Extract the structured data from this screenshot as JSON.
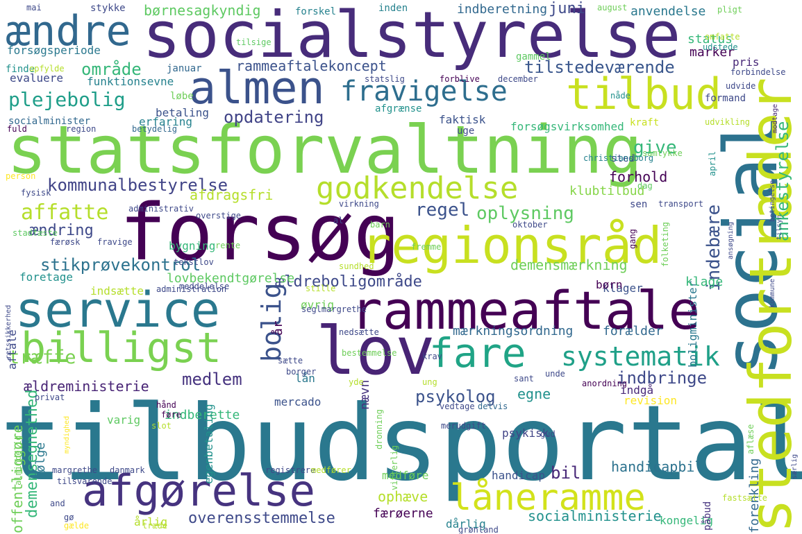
{
  "palette": [
    "#440154",
    "#482878",
    "#3e4989",
    "#31688e",
    "#26828e",
    "#1f9e89",
    "#35b779",
    "#6ece58",
    "#b5de2b",
    "#fde725"
  ],
  "words": [
    {
      "text": "tilbudsportal",
      "color": "#2a788e"
    },
    {
      "text": "socialstyrelse",
      "color": "#472c7a"
    },
    {
      "text": "statsforvaltning",
      "color": "#7ad151"
    },
    {
      "text": "forsøg",
      "color": "#440154"
    },
    {
      "text": "regionsråd",
      "color": "#c8e020"
    },
    {
      "text": "rammeaftale",
      "color": "#440154"
    },
    {
      "text": "service",
      "color": "#2a788e"
    },
    {
      "text": "lov",
      "color": "#482475"
    },
    {
      "text": "social",
      "color": "#2c728e"
    },
    {
      "text": "stedfortræder",
      "color": "#c8e020"
    },
    {
      "text": "almen",
      "color": "#3b528b"
    },
    {
      "text": "tilbud",
      "color": "#c8e020"
    },
    {
      "text": "ændre",
      "color": "#31688e"
    },
    {
      "text": "billigst",
      "color": "#7ad151"
    },
    {
      "text": "afgørelse",
      "color": "#46337f"
    },
    {
      "text": "fare",
      "color": "#20a486"
    },
    {
      "text": "låneramme",
      "color": "#d2e21b"
    },
    {
      "text": "godkendelse",
      "color": "#b5de2b"
    },
    {
      "text": "fravigelse",
      "color": "#2e6e8e"
    },
    {
      "text": "systematik",
      "color": "#1fa088"
    },
    {
      "text": "bolig",
      "color": "#3b528b"
    },
    {
      "text": "kommunalbestyrelse",
      "color": "#414487"
    },
    {
      "text": "plejebolig",
      "color": "#1f9e89"
    },
    {
      "text": "område",
      "color": "#35b779"
    },
    {
      "text": "tilstedeværende",
      "color": "#39568c"
    },
    {
      "text": "opdatering",
      "color": "#414487"
    },
    {
      "text": "rammeaftalekoncept",
      "color": "#3b528b"
    },
    {
      "text": "stikprøvekontrol",
      "color": "#2c728e"
    },
    {
      "text": "affatte",
      "color": "#b5de2b"
    },
    {
      "text": "ændring",
      "color": "#3e4989"
    },
    {
      "text": "træffe",
      "color": "#7ad151"
    },
    {
      "text": "regel",
      "color": "#3b528b"
    },
    {
      "text": "oplysning",
      "color": "#5ec962"
    },
    {
      "text": "indbringe",
      "color": "#3e4989"
    },
    {
      "text": "psykolog",
      "color": "#3b528b"
    },
    {
      "text": "medlem",
      "color": "#46337f"
    },
    {
      "text": "overensstemmelse",
      "color": "#3e4989"
    },
    {
      "text": "ankestyrelse",
      "color": "#35b779"
    },
    {
      "text": "demensmærkning",
      "color": "#6ece58"
    },
    {
      "text": "forhold",
      "color": "#440154"
    },
    {
      "text": "give",
      "color": "#35b779"
    },
    {
      "text": "indebære",
      "color": "#3b528b"
    },
    {
      "text": "handicapbil",
      "color": "#2c728e"
    },
    {
      "text": "bil",
      "color": "#482878"
    },
    {
      "text": "ophæve",
      "color": "#b5de2b"
    },
    {
      "text": "socialministerie",
      "color": "#21918c"
    },
    {
      "text": "ældreboligområde",
      "color": "#3e4989"
    },
    {
      "text": "mærkningsordning",
      "color": "#31688e"
    },
    {
      "text": "forælder",
      "color": "#31688e"
    },
    {
      "text": "ældreministerie",
      "color": "#482475"
    },
    {
      "text": "demensegnethed",
      "color": "#35b779"
    },
    {
      "text": "offentliggøre",
      "color": "#6ece58"
    },
    {
      "text": "følge",
      "color": "#2a788e"
    },
    {
      "text": "afdragsfri",
      "color": "#b5de2b"
    },
    {
      "text": "lovbekendtgørelse",
      "color": "#5ec962"
    },
    {
      "text": "indsætte",
      "color": "#b5de2b"
    },
    {
      "text": "foretage",
      "color": "#21918c"
    },
    {
      "text": "bygning",
      "color": "#35b779"
    },
    {
      "text": "klubtilbud",
      "color": "#86d549"
    },
    {
      "text": "børnesagkyndig",
      "color": "#5ec962"
    },
    {
      "text": "indberetning",
      "color": "#31688e"
    },
    {
      "text": "anvendelse",
      "color": "#2a788e"
    },
    {
      "text": "forsøgsperiode",
      "color": "#2a788e"
    },
    {
      "text": "funktionsevne",
      "color": "#26828e"
    },
    {
      "text": "evaluere",
      "color": "#3e4989"
    },
    {
      "text": "forsøgsvirksomhed",
      "color": "#35b779"
    },
    {
      "text": "afgrænse",
      "color": "#21918c"
    },
    {
      "text": "socialminister",
      "color": "#31688e"
    },
    {
      "text": "erfaring",
      "color": "#26828e"
    },
    {
      "text": "betaling",
      "color": "#3b528b"
    },
    {
      "text": "faktisk",
      "color": "#3b528b"
    },
    {
      "text": "kraft",
      "color": "#c8e020"
    },
    {
      "text": "status",
      "color": "#35b779"
    },
    {
      "text": "marker",
      "color": "#440154"
    },
    {
      "text": "pris",
      "color": "#482878"
    },
    {
      "text": "juni",
      "color": "#3e4989"
    },
    {
      "text": "år",
      "color": "#440154"
    },
    {
      "text": "egne",
      "color": "#21918c"
    },
    {
      "text": "nævn",
      "color": "#46337f"
    },
    {
      "text": "lån",
      "color": "#2a788e"
    },
    {
      "text": "mercado",
      "color": "#3b528b"
    },
    {
      "text": "indberette",
      "color": "#35b779"
    },
    {
      "text": "varig",
      "color": "#5ec962"
    },
    {
      "text": "indgå",
      "color": "#482878"
    },
    {
      "text": "revision",
      "color": "#fde725"
    },
    {
      "text": "handicap",
      "color": "#3b528b"
    },
    {
      "text": "medføre",
      "color": "#6ece58"
    },
    {
      "text": "færøerne",
      "color": "#440154"
    },
    {
      "text": "dårlig",
      "color": "#26828e"
    },
    {
      "text": "kongelig",
      "color": "#35b779"
    },
    {
      "text": "forenkling",
      "color": "#31688e"
    },
    {
      "text": "årlig",
      "color": "#b5de2b"
    },
    {
      "text": "påbud",
      "color": "#46337f"
    },
    {
      "text": "boligminister",
      "color": "#2a788e"
    },
    {
      "text": "klager",
      "color": "#3b528b"
    },
    {
      "text": "klage",
      "color": "#35b779"
    },
    {
      "text": "børn",
      "color": "#440154"
    },
    {
      "text": "aftale",
      "color": "#3e4989"
    },
    {
      "text": "egenbetaling",
      "color": "#21918c"
    },
    {
      "text": "psykisk",
      "color": "#414487"
    },
    {
      "text": "øvrig",
      "color": "#6ece58"
    },
    {
      "text": "januar",
      "color": "#31688e"
    },
    {
      "text": "gammel",
      "color": "#5ec962"
    },
    {
      "text": "løbe",
      "color": "#6ece58"
    },
    {
      "text": "uge",
      "color": "#3e4989"
    },
    {
      "text": "formand",
      "color": "#3e4989"
    },
    {
      "text": "sted",
      "color": "#3e4989"
    },
    {
      "text": "sen",
      "color": "#3e4989"
    },
    {
      "text": "finde",
      "color": "#21918c"
    },
    {
      "text": "mai",
      "color": "#3e4989"
    },
    {
      "text": "stykke",
      "color": "#3e4989"
    },
    {
      "text": "forskel",
      "color": "#26828e"
    },
    {
      "text": "inden",
      "color": "#26828e"
    },
    {
      "text": "august",
      "color": "#6ece58"
    },
    {
      "text": "pligt",
      "color": "#6ece58"
    },
    {
      "text": "tilsige",
      "color": "#5ec962"
    },
    {
      "text": "omfatte",
      "color": "#b5de2b"
    },
    {
      "text": "udstede",
      "color": "#21918c"
    },
    {
      "text": "opfylde",
      "color": "#b5de2b"
    },
    {
      "text": "statslig",
      "color": "#3e4989"
    },
    {
      "text": "forblive",
      "color": "#440154"
    },
    {
      "text": "december",
      "color": "#3e4989"
    },
    {
      "text": "forbindelse",
      "color": "#3e4989"
    },
    {
      "text": "udvide",
      "color": "#3e4989"
    },
    {
      "text": "nåde",
      "color": "#21918c"
    },
    {
      "text": "fuld",
      "color": "#440154"
    },
    {
      "text": "region",
      "color": "#3e4989"
    },
    {
      "text": "betydelig",
      "color": "#31688e"
    },
    {
      "text": "udvikling",
      "color": "#b5de2b"
    },
    {
      "text": "modtage",
      "color": "#482878"
    },
    {
      "text": "samtykke",
      "color": "#6ece58"
    },
    {
      "text": "christiansborg",
      "color": "#26828e"
    },
    {
      "text": "april",
      "color": "#21918c"
    },
    {
      "text": "dag",
      "color": "#5ec962"
    },
    {
      "text": "person",
      "color": "#fde725"
    },
    {
      "text": "fysisk",
      "color": "#3e4989"
    },
    {
      "text": "administrativ",
      "color": "#3e4989"
    },
    {
      "text": "virkning",
      "color": "#3e4989"
    },
    {
      "text": "transport",
      "color": "#3e4989"
    },
    {
      "text": "overstige",
      "color": "#3e4989"
    },
    {
      "text": "al",
      "color": "#3e4989"
    },
    {
      "text": "barn",
      "color": "#6ece58"
    },
    {
      "text": "oktober",
      "color": "#3e4989"
    },
    {
      "text": "ansøgning",
      "color": "#3e4989"
    },
    {
      "text": "tilsyn",
      "color": "#3b528b"
    },
    {
      "text": "betingelse",
      "color": "#3e4989"
    },
    {
      "text": "stadfæste",
      "color": "#5ec962"
    },
    {
      "text": "færøsk",
      "color": "#3e4989"
    },
    {
      "text": "fravige",
      "color": "#3e4989"
    },
    {
      "text": "rente",
      "color": "#6ece58"
    },
    {
      "text": "gang",
      "color": "#440154"
    },
    {
      "text": "folketing",
      "color": "#6ece58"
    },
    {
      "text": "tekstlov",
      "color": "#3e4989"
    },
    {
      "text": "sundhed",
      "color": "#b5de2b"
    },
    {
      "text": "fremme",
      "color": "#6ece58"
    },
    {
      "text": "meddelelse",
      "color": "#3e4989"
    },
    {
      "text": "administration",
      "color": "#3e4989"
    },
    {
      "text": "stille",
      "color": "#b5de2b"
    },
    {
      "text": "kommune",
      "color": "#3e4989"
    },
    {
      "text": "seglmargrethe",
      "color": "#3e4989"
    },
    {
      "text": "nedsætte",
      "color": "#3e4989"
    },
    {
      "text": "retssikkerhed",
      "color": "#3e4989"
    },
    {
      "text": "bestemmelse",
      "color": "#6ece58"
    },
    {
      "text": "sætte",
      "color": "#3e4989"
    },
    {
      "text": "borger",
      "color": "#3e4989"
    },
    {
      "text": "krav",
      "color": "#3e4989"
    },
    {
      "text": "sant",
      "color": "#3e4989"
    },
    {
      "text": "unde",
      "color": "#3e4989"
    },
    {
      "text": "yde",
      "color": "#b5de2b"
    },
    {
      "text": "ung",
      "color": "#b5de2b"
    },
    {
      "text": "anordning",
      "color": "#440154"
    },
    {
      "text": "privat",
      "color": "#3e4989"
    },
    {
      "text": "hånd",
      "color": "#440154"
    },
    {
      "text": "føre",
      "color": "#440154"
    },
    {
      "text": "slot",
      "color": "#b5de2b"
    },
    {
      "text": "vedtage",
      "color": "#3e4989"
    },
    {
      "text": "delvis",
      "color": "#31688e"
    },
    {
      "text": "merudgift",
      "color": "#3e4989"
    },
    {
      "text": "gud",
      "color": "#3e4989"
    },
    {
      "text": "dronning",
      "color": "#6ece58"
    },
    {
      "text": "vitterlig",
      "color": "#6ece58"
    },
    {
      "text": "aflæse",
      "color": "#6ece58"
    },
    {
      "text": "særlig",
      "color": "#3e4989"
    },
    {
      "text": "myndighed",
      "color": "#fde725"
    },
    {
      "text": "almindelig",
      "color": "#6ece58"
    },
    {
      "text": "margrethe",
      "color": "#3e4989"
    },
    {
      "text": "danmark",
      "color": "#3e4989"
    },
    {
      "text": "registrere",
      "color": "#3e4989"
    },
    {
      "text": "medfører",
      "color": "#b5de2b"
    },
    {
      "text": "tilsvarende",
      "color": "#3e4989"
    },
    {
      "text": "and",
      "color": "#3e4989"
    },
    {
      "text": "gø",
      "color": "#3e4989"
    },
    {
      "text": "gælde",
      "color": "#fde725"
    },
    {
      "text": "træde",
      "color": "#b5de2b"
    },
    {
      "text": "grønland",
      "color": "#3e4989"
    },
    {
      "text": "fastsætte",
      "color": "#b5de2b"
    },
    {
      "text": "første",
      "color": "#440154"
    }
  ]
}
